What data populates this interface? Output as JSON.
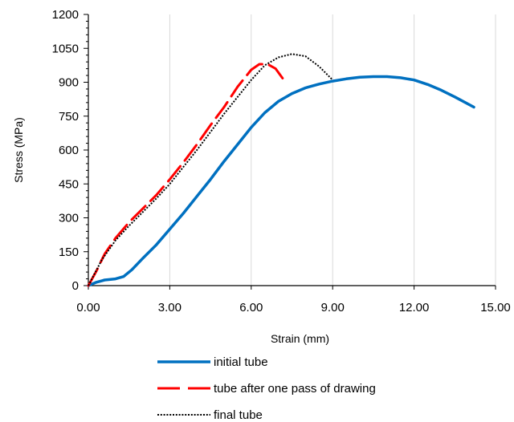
{
  "chart_data": {
    "type": "line",
    "xlabel": "Strain (mm)",
    "ylabel": "Stress (MPa)",
    "xlim": [
      0,
      15
    ],
    "ylim": [
      0,
      1200
    ],
    "xticks": [
      "0.00",
      "3.00",
      "6.00",
      "9.00",
      "12.00",
      "15.00"
    ],
    "yticks": [
      "0",
      "150",
      "300",
      "450",
      "600",
      "750",
      "900",
      "1050",
      "1200"
    ],
    "grid": "vertical",
    "legend_position": "bottom",
    "series": [
      {
        "name": "initial tube",
        "color": "#0070C0",
        "style": "solid",
        "x": [
          0,
          0.3,
          0.6,
          1.0,
          1.3,
          1.6,
          2.0,
          2.5,
          3.0,
          3.5,
          4.0,
          4.5,
          5.0,
          5.5,
          6.0,
          6.5,
          7.0,
          7.5,
          8.0,
          8.5,
          9.0,
          9.5,
          10.0,
          10.5,
          11.0,
          11.5,
          12.0,
          12.5,
          13.0,
          13.5,
          14.2
        ],
        "y": [
          0,
          15,
          25,
          30,
          40,
          70,
          120,
          180,
          250,
          320,
          395,
          470,
          550,
          625,
          700,
          765,
          815,
          850,
          875,
          892,
          905,
          915,
          922,
          925,
          925,
          920,
          910,
          890,
          865,
          835,
          790
        ]
      },
      {
        "name": "tube after one pass of drawing",
        "color": "#FF0000",
        "style": "dashed",
        "x": [
          0,
          0.3,
          0.6,
          1.0,
          1.5,
          2.0,
          2.5,
          3.0,
          3.5,
          4.0,
          4.5,
          5.0,
          5.5,
          6.0,
          6.3,
          6.6,
          6.9,
          7.2
        ],
        "y": [
          0,
          65,
          140,
          210,
          280,
          340,
          400,
          470,
          545,
          625,
          710,
          790,
          880,
          955,
          980,
          980,
          960,
          910
        ]
      },
      {
        "name": "final tube",
        "color": "#000000",
        "style": "dotted",
        "x": [
          0,
          0.5,
          1.0,
          1.5,
          2.0,
          2.5,
          3.0,
          3.5,
          4.0,
          4.5,
          5.0,
          5.5,
          6.0,
          6.5,
          7.0,
          7.5,
          8.0,
          8.5,
          9.0
        ],
        "y": [
          0,
          115,
          200,
          265,
          325,
          385,
          450,
          525,
          600,
          680,
          760,
          835,
          910,
          975,
          1010,
          1025,
          1015,
          970,
          910
        ]
      }
    ]
  }
}
